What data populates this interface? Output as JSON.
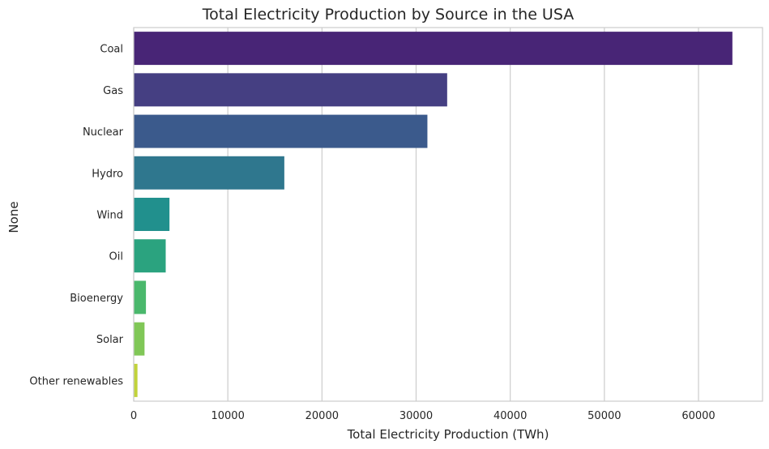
{
  "chart_data": {
    "type": "bar",
    "orientation": "horizontal",
    "title": "Total Electricity Production by Source in the USA",
    "xlabel": "Total Electricity Production (TWh)",
    "ylabel": "None",
    "categories": [
      "Coal",
      "Gas",
      "Nuclear",
      "Hydro",
      "Wind",
      "Oil",
      "Bioenergy",
      "Solar",
      "Other renewables"
    ],
    "values": [
      63600,
      33300,
      31200,
      16000,
      3800,
      3400,
      1300,
      1150,
      400
    ],
    "colors": [
      "#482576",
      "#453f82",
      "#3b5a8c",
      "#2f778e",
      "#21908d",
      "#2ba37f",
      "#4ab86c",
      "#80c757",
      "#c1d33a"
    ],
    "xlim": [
      0,
      66800
    ],
    "xticks": [
      0,
      10000,
      20000,
      30000,
      40000,
      50000,
      60000
    ],
    "xtick_labels": [
      "0",
      "10000",
      "20000",
      "30000",
      "40000",
      "50000",
      "60000"
    ],
    "grid": "vertical",
    "legend": "none"
  }
}
